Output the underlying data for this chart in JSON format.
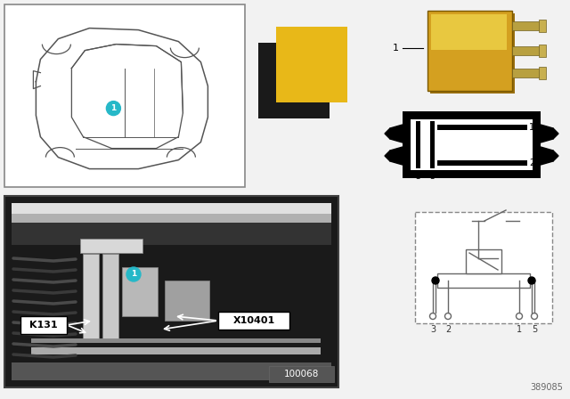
{
  "page_bg": "#f2f2f2",
  "label_color": "#26b8c8",
  "label_text": "#ffffff",
  "car_box_edge": "#888888",
  "car_line_color": "#555555",
  "photo_bg": "#1c1c1c",
  "photo_top_bar": "#888888",
  "photo_bottom_bar": "#888888",
  "white": "#ffffff",
  "black": "#111111",
  "yellow_swatch": "#e8b818",
  "black_swatch": "#1a1a1a",
  "relay_yellow": "#d4a020",
  "relay_yellow_light": "#e8c840",
  "relay_pin_color": "#b8a040",
  "pin_diag_bg": "#000000",
  "pin_diag_inner": "#ffffff",
  "schematic_edge": "#888888",
  "schematic_line": "#666666",
  "number_color": "#666666",
  "number_id": "389085",
  "photo_number": "100068"
}
